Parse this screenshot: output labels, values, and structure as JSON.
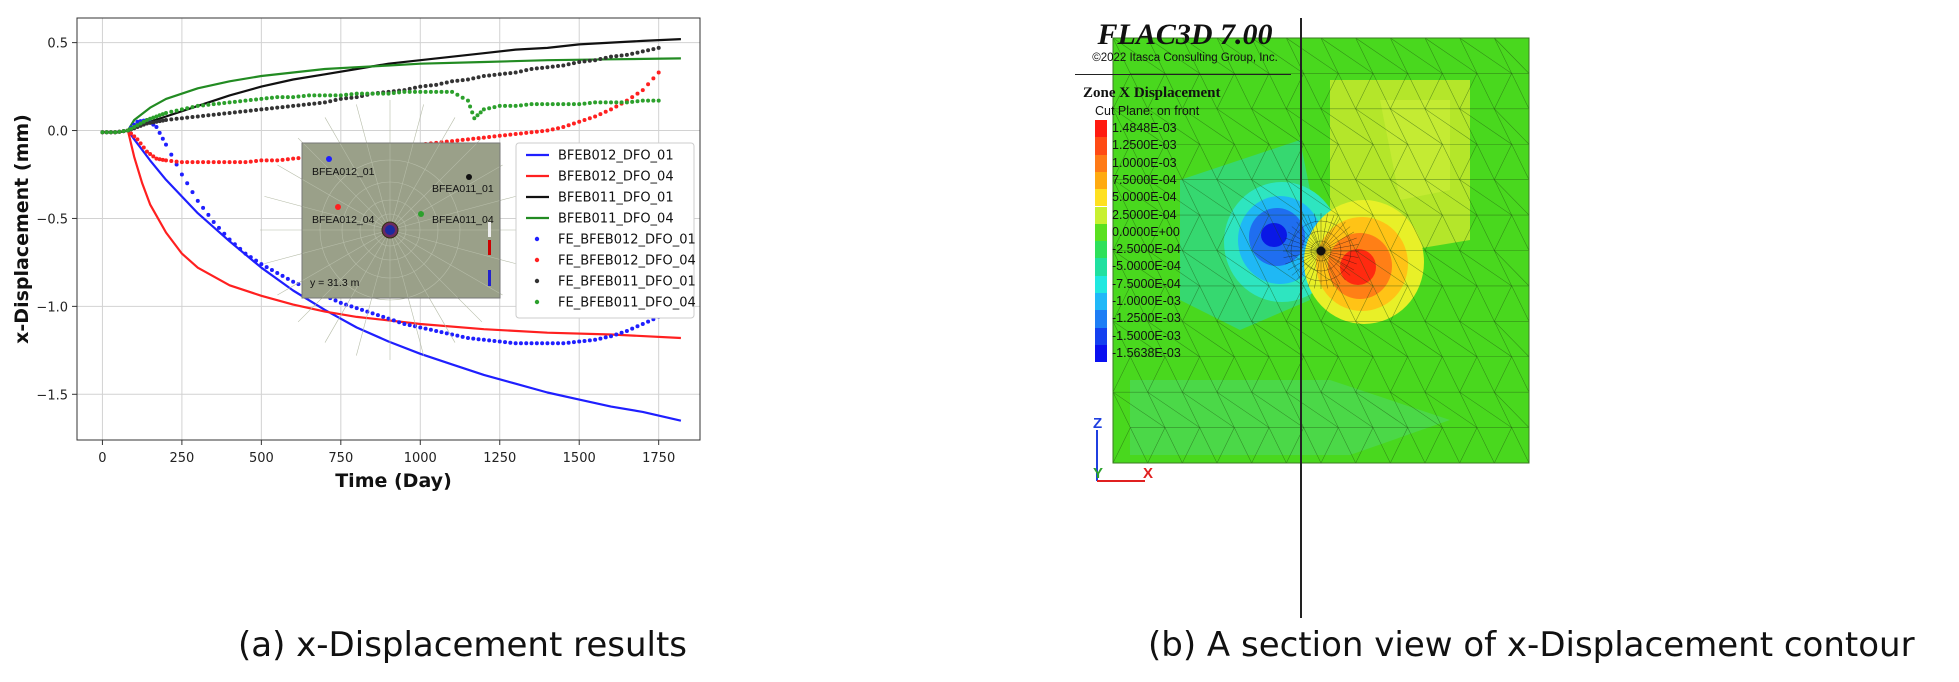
{
  "captions": {
    "left": "(a) x-Displacement results",
    "right": "(b) A section view of x-Displacement contour"
  },
  "chart_data": {
    "type": "line",
    "xlabel": "Time (Day)",
    "ylabel": "x-Displacement (mm)",
    "xlim": [
      -80,
      1880
    ],
    "ylim": [
      -1.76,
      0.64
    ],
    "xticks": [
      0,
      250,
      500,
      750,
      1000,
      1250,
      1500,
      1750
    ],
    "yticks": [
      0.5,
      0.0,
      -0.5,
      -1.0,
      -1.5
    ],
    "grid": true,
    "legend_position": "right",
    "series": [
      {
        "name": "BFEB012_DFO_01",
        "style": "line",
        "color": "#1f1fff",
        "x": [
          0,
          50,
          80,
          100,
          150,
          200,
          300,
          400,
          500,
          600,
          700,
          800,
          900,
          1000,
          1100,
          1200,
          1300,
          1400,
          1500,
          1600,
          1700,
          1820
        ],
        "y": [
          -0.01,
          -0.01,
          0.0,
          -0.05,
          -0.17,
          -0.28,
          -0.47,
          -0.63,
          -0.78,
          -0.91,
          -1.02,
          -1.12,
          -1.2,
          -1.27,
          -1.33,
          -1.39,
          -1.44,
          -1.49,
          -1.53,
          -1.57,
          -1.6,
          -1.65
        ]
      },
      {
        "name": "BFEB012_DFO_04",
        "style": "line",
        "color": "#ff2020",
        "x": [
          0,
          50,
          80,
          100,
          125,
          150,
          200,
          250,
          300,
          400,
          500,
          600,
          700,
          800,
          900,
          1000,
          1200,
          1400,
          1600,
          1820
        ],
        "y": [
          -0.01,
          -0.01,
          0.0,
          -0.15,
          -0.3,
          -0.42,
          -0.58,
          -0.7,
          -0.78,
          -0.88,
          -0.94,
          -0.99,
          -1.03,
          -1.06,
          -1.08,
          -1.1,
          -1.13,
          -1.15,
          -1.16,
          -1.18
        ]
      },
      {
        "name": "BFEB011_DFO_01",
        "style": "line",
        "color": "#111111",
        "x": [
          0,
          50,
          80,
          100,
          150,
          200,
          300,
          400,
          500,
          600,
          700,
          800,
          900,
          1000,
          1100,
          1200,
          1300,
          1400,
          1500,
          1600,
          1700,
          1820
        ],
        "y": [
          -0.01,
          -0.01,
          0.0,
          0.02,
          0.05,
          0.08,
          0.14,
          0.2,
          0.25,
          0.29,
          0.32,
          0.35,
          0.38,
          0.4,
          0.42,
          0.44,
          0.46,
          0.47,
          0.49,
          0.5,
          0.51,
          0.52
        ]
      },
      {
        "name": "BFEB011_DFO_04",
        "style": "line",
        "color": "#228b22",
        "x": [
          0,
          50,
          80,
          100,
          150,
          200,
          300,
          400,
          500,
          600,
          700,
          800,
          900,
          1000,
          1200,
          1400,
          1600,
          1820
        ],
        "y": [
          -0.01,
          -0.01,
          0.0,
          0.06,
          0.13,
          0.18,
          0.24,
          0.28,
          0.31,
          0.33,
          0.35,
          0.36,
          0.37,
          0.38,
          0.39,
          0.4,
          0.405,
          0.41
        ]
      },
      {
        "name": "FE_BFEB012_DFO_01",
        "style": "dots",
        "color": "#1f1fff",
        "x": [
          0,
          40,
          80,
          110,
          140,
          170,
          200,
          250,
          300,
          350,
          400,
          450,
          500,
          550,
          600,
          650,
          700,
          750,
          800,
          850,
          900,
          950,
          1000,
          1050,
          1100,
          1150,
          1200,
          1250,
          1300,
          1350,
          1400,
          1450,
          1500,
          1550,
          1600,
          1650,
          1700,
          1750
        ],
        "y": [
          -0.01,
          -0.01,
          0.0,
          0.05,
          0.06,
          0.02,
          -0.08,
          -0.25,
          -0.4,
          -0.52,
          -0.62,
          -0.7,
          -0.76,
          -0.81,
          -0.86,
          -0.9,
          -0.94,
          -0.98,
          -1.01,
          -1.04,
          -1.07,
          -1.1,
          -1.12,
          -1.14,
          -1.16,
          -1.18,
          -1.19,
          -1.2,
          -1.21,
          -1.21,
          -1.21,
          -1.21,
          -1.2,
          -1.19,
          -1.17,
          -1.14,
          -1.1,
          -1.06
        ]
      },
      {
        "name": "FE_BFEB012_DFO_04",
        "style": "dots",
        "color": "#ff2020",
        "x": [
          0,
          40,
          80,
          110,
          140,
          170,
          200,
          250,
          300,
          350,
          400,
          450,
          500,
          550,
          600,
          650,
          700,
          750,
          800,
          850,
          900,
          950,
          1000,
          1050,
          1100,
          1150,
          1200,
          1250,
          1300,
          1350,
          1400,
          1450,
          1500,
          1550,
          1600,
          1650,
          1700,
          1750
        ],
        "y": [
          -0.01,
          -0.01,
          0.0,
          -0.05,
          -0.12,
          -0.16,
          -0.17,
          -0.18,
          -0.18,
          -0.18,
          -0.18,
          -0.18,
          -0.17,
          -0.17,
          -0.16,
          -0.15,
          -0.14,
          -0.13,
          -0.12,
          -0.11,
          -0.1,
          -0.09,
          -0.08,
          -0.07,
          -0.06,
          -0.05,
          -0.04,
          -0.03,
          -0.02,
          -0.01,
          0.0,
          0.02,
          0.05,
          0.08,
          0.12,
          0.17,
          0.23,
          0.33
        ]
      },
      {
        "name": "FE_BFEB011_DFO_01",
        "style": "dots",
        "color": "#333333",
        "x": [
          0,
          40,
          80,
          110,
          140,
          170,
          200,
          250,
          300,
          350,
          400,
          450,
          500,
          550,
          600,
          650,
          700,
          750,
          800,
          850,
          900,
          950,
          1000,
          1050,
          1100,
          1150,
          1200,
          1250,
          1300,
          1350,
          1400,
          1450,
          1500,
          1550,
          1600,
          1650,
          1700,
          1750
        ],
        "y": [
          -0.01,
          -0.01,
          0.0,
          0.02,
          0.04,
          0.05,
          0.06,
          0.07,
          0.08,
          0.09,
          0.1,
          0.11,
          0.12,
          0.13,
          0.14,
          0.15,
          0.16,
          0.18,
          0.19,
          0.21,
          0.22,
          0.23,
          0.25,
          0.26,
          0.28,
          0.29,
          0.31,
          0.32,
          0.33,
          0.35,
          0.36,
          0.37,
          0.39,
          0.4,
          0.42,
          0.43,
          0.45,
          0.47
        ]
      },
      {
        "name": "FE_BFEB011_DFO_04",
        "style": "dots",
        "color": "#2ca02c",
        "x": [
          0,
          40,
          80,
          110,
          140,
          170,
          200,
          250,
          300,
          350,
          400,
          450,
          500,
          550,
          600,
          650,
          700,
          750,
          800,
          850,
          900,
          950,
          1000,
          1050,
          1100,
          1150,
          1170,
          1200,
          1250,
          1300,
          1350,
          1400,
          1450,
          1500,
          1550,
          1600,
          1650,
          1700,
          1750
        ],
        "y": [
          -0.01,
          -0.01,
          0.0,
          0.03,
          0.06,
          0.08,
          0.1,
          0.12,
          0.14,
          0.15,
          0.16,
          0.17,
          0.18,
          0.19,
          0.19,
          0.2,
          0.2,
          0.2,
          0.21,
          0.21,
          0.21,
          0.22,
          0.22,
          0.22,
          0.22,
          0.17,
          0.07,
          0.12,
          0.14,
          0.14,
          0.15,
          0.15,
          0.15,
          0.15,
          0.16,
          0.16,
          0.16,
          0.17,
          0.17
        ]
      }
    ],
    "inset": {
      "labels": [
        "BFEA012_01",
        "BFEA011_01",
        "BFEA012_04",
        "BFEA011_04"
      ],
      "caption": "y = 31.3 m"
    }
  },
  "flac": {
    "title": "FLAC3D 7.00",
    "copyright": "©2022 Itasca Consulting Group, Inc.",
    "zone_title": "Zone X Displacement",
    "cut_plane": "Cut Plane: on front",
    "legend": [
      {
        "label": "1.4848E-03",
        "color": "#ff1a10"
      },
      {
        "label": "1.2500E-03",
        "color": "#ff4a14"
      },
      {
        "label": "1.0000E-03",
        "color": "#ff7a16"
      },
      {
        "label": "7.5000E-04",
        "color": "#ffaa10"
      },
      {
        "label": "5.0000E-04",
        "color": "#ffe020"
      },
      {
        "label": "2.5000E-04",
        "color": "#c8f030"
      },
      {
        "label": "0.0000E+00",
        "color": "#5ae020"
      },
      {
        "label": "-2.5000E-04",
        "color": "#2ee05a"
      },
      {
        "label": "-5.0000E-04",
        "color": "#20e0a0"
      },
      {
        "label": "-7.5000E-04",
        "color": "#20e8e0"
      },
      {
        "label": "-1.0000E-03",
        "color": "#20b8f8"
      },
      {
        "label": "-1.2500E-03",
        "color": "#1e7ef5"
      },
      {
        "label": "-1.5000E-03",
        "color": "#1440f0"
      },
      {
        "label": "-1.5638E-03",
        "color": "#0a10f0"
      }
    ],
    "axes": {
      "z": "Z",
      "y": "Y",
      "x": "X"
    }
  }
}
